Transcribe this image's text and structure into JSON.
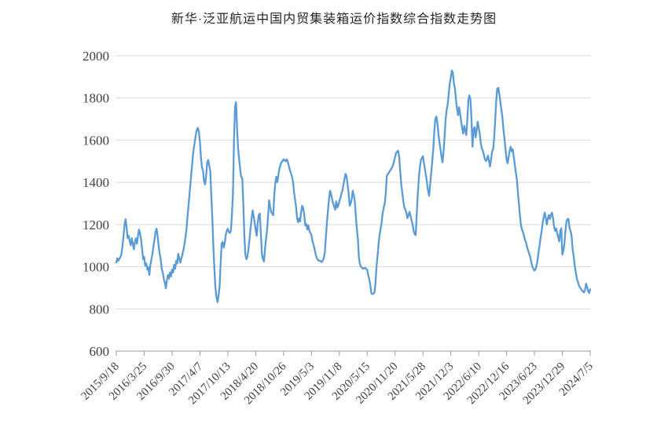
{
  "title": "新华·泛亚航运中国内贸集装箱运价指数综合指数走势图",
  "chart_data": {
    "type": "line",
    "title": "新华·泛亚航运中国内贸集装箱运价指数综合指数走势图",
    "legend": "none",
    "grid": "horizontal-only",
    "ylim": [
      600,
      2000
    ],
    "y_ticks": [
      600,
      800,
      1000,
      1200,
      1400,
      1600,
      1800,
      2000
    ],
    "x_tick_labels": [
      "2015/9/18",
      "2016/3/25",
      "2016/9/30",
      "2017/4/7",
      "2017/10/13",
      "2018/4/20",
      "2018/10/26",
      "2019/5/3",
      "2019/11/8",
      "2020/5/15",
      "2020/11/20",
      "2021/5/28",
      "2021/12/3",
      "2022/6/10",
      "2022/12/16",
      "2023/6/23",
      "2023/12/29",
      "2024/7/5"
    ],
    "x_tick_interval_weeks": 27,
    "sampling": "weekly",
    "colors": {
      "line": "#5B9BD5",
      "grid": "#D9D9D9",
      "axis": "#9c9c9c",
      "tick_label": "#404040",
      "title_text": "#262626",
      "background": "#ffffff"
    },
    "series": [
      {
        "values": [
          1020,
          1040,
          1028,
          1039,
          1046,
          1061,
          1098,
          1146,
          1202,
          1225,
          1184,
          1135,
          1146,
          1120,
          1102,
          1135,
          1109,
          1083,
          1117,
          1135,
          1109,
          1146,
          1176,
          1157,
          1128,
          1083,
          1035,
          1046,
          1005,
          1016,
          987,
          998,
          961,
          1009,
          1035,
          1061,
          1098,
          1128,
          1165,
          1180,
          1146,
          1100,
          1060,
          1035,
          990,
          973,
          943,
          925,
          897,
          935,
          961,
          943,
          973,
          954,
          987,
          973,
          1009,
          990,
          1028,
          1016,
          1061,
          1040,
          1019,
          1040,
          1057,
          1080,
          1106,
          1140,
          1180,
          1240,
          1293,
          1350,
          1405,
          1460,
          1517,
          1560,
          1592,
          1625,
          1650,
          1658,
          1640,
          1592,
          1517,
          1470,
          1454,
          1405,
          1390,
          1430,
          1492,
          1506,
          1480,
          1454,
          1340,
          1230,
          1094,
          990,
          900,
          858,
          832,
          860,
          905,
          1010,
          1110,
          1117,
          1090,
          1110,
          1150,
          1170,
          1180,
          1165,
          1160,
          1170,
          1250,
          1350,
          1600,
          1760,
          1780,
          1650,
          1560,
          1509,
          1460,
          1425,
          1420,
          1300,
          1150,
          1057,
          1036,
          1047,
          1085,
          1130,
          1180,
          1225,
          1267,
          1240,
          1211,
          1173,
          1147,
          1210,
          1245,
          1252,
          1158,
          1060,
          1036,
          1025,
          1084,
          1130,
          1173,
          1240,
          1315,
          1285,
          1259,
          1252,
          1244,
          1341,
          1397,
          1427,
          1401,
          1434,
          1465,
          1483,
          1495,
          1501,
          1509,
          1505,
          1500,
          1509,
          1500,
          1480,
          1460,
          1445,
          1430,
          1408,
          1360,
          1322,
          1289,
          1233,
          1211,
          1229,
          1215,
          1259,
          1289,
          1278,
          1248,
          1196,
          1203,
          1177,
          1196,
          1170,
          1160,
          1150,
          1121,
          1105,
          1084,
          1060,
          1043,
          1035,
          1028,
          1030,
          1025,
          1022,
          1030,
          1042,
          1070,
          1140,
          1210,
          1267,
          1320,
          1360,
          1345,
          1320,
          1300,
          1285,
          1270,
          1310,
          1280,
          1290,
          1310,
          1325,
          1345,
          1360,
          1390,
          1415,
          1440,
          1430,
          1390,
          1350,
          1290,
          1300,
          1320,
          1360,
          1340,
          1310,
          1240,
          1180,
          1130,
          1042,
          1010,
          1000,
          995,
          990,
          992,
          995,
          990,
          985,
          960,
          940,
          915,
          875,
          870,
          872,
          878,
          920,
          1000,
          1050,
          1105,
          1150,
          1180,
          1210,
          1255,
          1280,
          1300,
          1350,
          1430,
          1440,
          1445,
          1455,
          1462,
          1470,
          1480,
          1500,
          1520,
          1540,
          1545,
          1550,
          1520,
          1450,
          1390,
          1350,
          1310,
          1280,
          1270,
          1255,
          1230,
          1245,
          1260,
          1240,
          1220,
          1200,
          1170,
          1155,
          1150,
          1250,
          1342,
          1420,
          1470,
          1505,
          1515,
          1524,
          1490,
          1460,
          1430,
          1395,
          1360,
          1336,
          1390,
          1443,
          1500,
          1556,
          1640,
          1700,
          1712,
          1680,
          1630,
          1590,
          1556,
          1520,
          1495,
          1550,
          1618,
          1700,
          1745,
          1770,
          1820,
          1870,
          1895,
          1930,
          1920,
          1870,
          1845,
          1790,
          1750,
          1718,
          1756,
          1725,
          1690,
          1656,
          1631,
          1668,
          1643,
          1624,
          1700,
          1790,
          1812,
          1793,
          1700,
          1569,
          1650,
          1662,
          1613,
          1643,
          1687,
          1660,
          1631,
          1587,
          1560,
          1550,
          1531,
          1510,
          1501,
          1509,
          1527,
          1501,
          1475,
          1509,
          1546,
          1557,
          1613,
          1695,
          1788,
          1844,
          1848,
          1818,
          1781,
          1743,
          1706,
          1650,
          1606,
          1557,
          1509,
          1490,
          1520,
          1550,
          1569,
          1546,
          1557,
          1520,
          1483,
          1446,
          1413,
          1350,
          1295,
          1240,
          1195,
          1175,
          1163,
          1145,
          1125,
          1113,
          1090,
          1076,
          1060,
          1045,
          1020,
          1000,
          990,
          982,
          988,
          1005,
          1032,
          1070,
          1101,
          1140,
          1170,
          1210,
          1235,
          1257,
          1230,
          1200,
          1230,
          1245,
          1226,
          1245,
          1257,
          1230,
          1190,
          1170,
          1182,
          1160,
          1140,
          1120,
          1170,
          1182,
          1057,
          1075,
          1107,
          1170,
          1213,
          1226,
          1226,
          1182,
          1170,
          1145,
          1082,
          1050,
          1007,
          975,
          944,
          930,
          913,
          903,
          895,
          888,
          882,
          878,
          890,
          920,
          905,
          885,
          875,
          893
        ]
      }
    ]
  },
  "layout_note_values": {
    "first_date": "2015/9/18",
    "last_date": "2024/7/5"
  }
}
